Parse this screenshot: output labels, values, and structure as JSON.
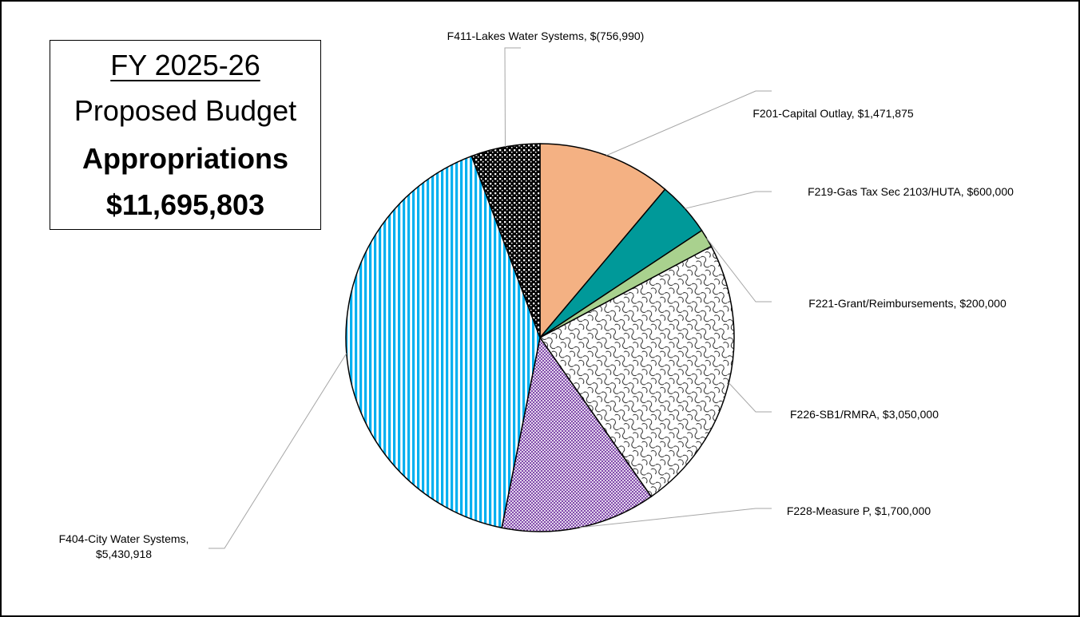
{
  "title_box": {
    "line1": "FY 2025-26",
    "line2": "Proposed Budget",
    "line3": "Appropriations",
    "line4": "$11,695,803"
  },
  "chart_data": {
    "type": "pie",
    "title": "",
    "slices": [
      {
        "label": "F201-Capital Outlay,",
        "value_text": "$1,471,875",
        "value": 1471875,
        "color": "#f4b183",
        "pattern": "solid"
      },
      {
        "label": "F219-Gas Tax Sec 2103/HUTA,",
        "value_text": "$600,000",
        "value": 600000,
        "color": "#009999",
        "pattern": "solid"
      },
      {
        "label": "F221-Grant/Reimbursements,",
        "value_text": "$200,000",
        "value": 200000,
        "color": "#a9d18e",
        "pattern": "solid"
      },
      {
        "label": "F226-SB1/RMRA,",
        "value_text": "$3,050,000",
        "value": 3050000,
        "color": "#ffffff",
        "pattern": "scales"
      },
      {
        "label": "F228-Measure P,",
        "value_text": "$1,700,000",
        "value": 1700000,
        "color": "#7030a0",
        "pattern": "crosshatch"
      },
      {
        "label": "F404-City Water Systems,",
        "value_text": "$5,430,918",
        "value": 5430918,
        "color": "#00b0f0",
        "pattern": "vertical-stripes"
      },
      {
        "label": "F411-Lakes Water Systems,",
        "value_text": "$(756,990)",
        "value": 756990,
        "color": "#000000",
        "pattern": "checker"
      }
    ]
  }
}
